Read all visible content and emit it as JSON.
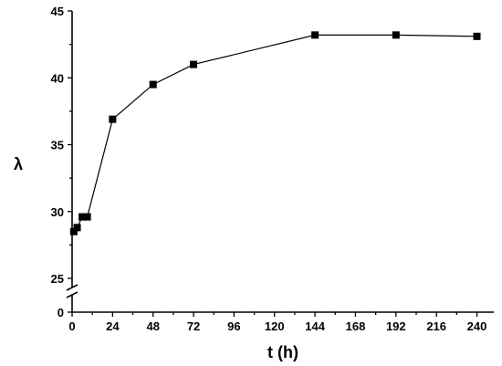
{
  "chart_data": {
    "type": "line",
    "xlabel": "t (h)",
    "ylabel": "λ",
    "xlim": [
      0,
      250
    ],
    "x_ticks": [
      0,
      24,
      48,
      72,
      96,
      120,
      144,
      168,
      192,
      216,
      240
    ],
    "y_axis_broken": true,
    "y_ticks_lower": [
      0
    ],
    "y_ticks_upper": [
      25,
      30,
      35,
      40,
      45
    ],
    "ylim_lower": [
      0,
      2.5
    ],
    "ylim_upper": [
      25,
      45
    ],
    "grid": false,
    "legend": "none",
    "series": [
      {
        "marker": "square",
        "color": "#000000",
        "x": [
          1,
          3,
          6,
          9,
          24,
          48,
          72,
          144,
          192,
          240
        ],
        "y": [
          28.5,
          28.8,
          29.6,
          29.6,
          36.9,
          39.5,
          41.0,
          43.2,
          43.2,
          43.1
        ]
      }
    ]
  }
}
